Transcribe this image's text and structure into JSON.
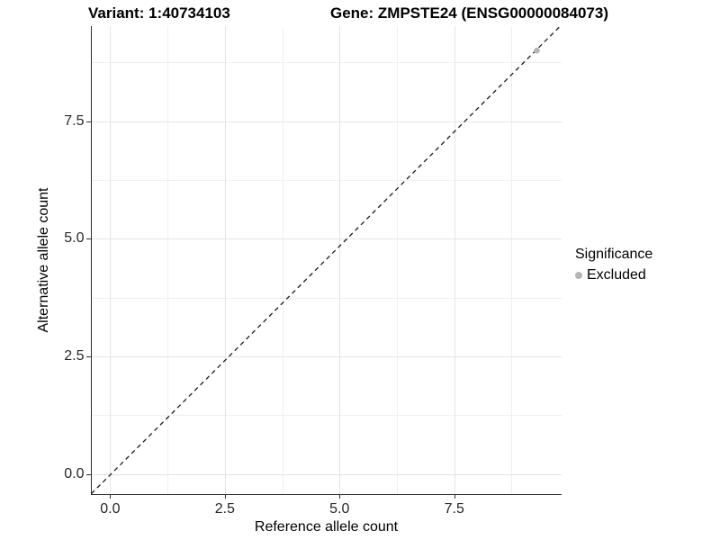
{
  "chart_data": {
    "type": "scatter",
    "titles": {
      "left": "Variant: 1:40734103",
      "right": "Gene: ZMPSTE24 (ENSG00000084073)"
    },
    "xlabel": "Reference allele count",
    "ylabel": "Alternative allele count",
    "x_tick_labels": [
      "0.0",
      "2.5",
      "5.0",
      "7.5"
    ],
    "x_tick_values": [
      0,
      2.5,
      5.0,
      7.5
    ],
    "y_tick_labels": [
      "0.0",
      "2.5",
      "5.0",
      "7.5"
    ],
    "y_tick_values": [
      0,
      2.5,
      5.0,
      7.5
    ],
    "minor_grid_values": [
      1.25,
      3.75,
      6.25,
      8.75
    ],
    "xlim": [
      -0.41,
      9.83
    ],
    "ylim": [
      -0.42,
      9.52
    ],
    "grid": "major-and-minor",
    "legend_position": "right",
    "series": [
      {
        "name": "Excluded",
        "color": "#b5b5b5",
        "points": [
          {
            "x": 9.3,
            "y": 9.0
          }
        ]
      }
    ],
    "reference_line": {
      "equation": "y = x",
      "style": "dashed",
      "color": "#1a1a1a"
    }
  },
  "legend": {
    "title": "Significance",
    "entries": [
      {
        "label": "Excluded",
        "color": "#b5b5b5",
        "marker": "circle"
      }
    ]
  },
  "colors": {
    "background": "#ffffff",
    "axis": "#2e2e2e",
    "major_grid": "#e4e4e4",
    "minor_grid": "#f0f0f0",
    "point": "#b5b5b5"
  }
}
